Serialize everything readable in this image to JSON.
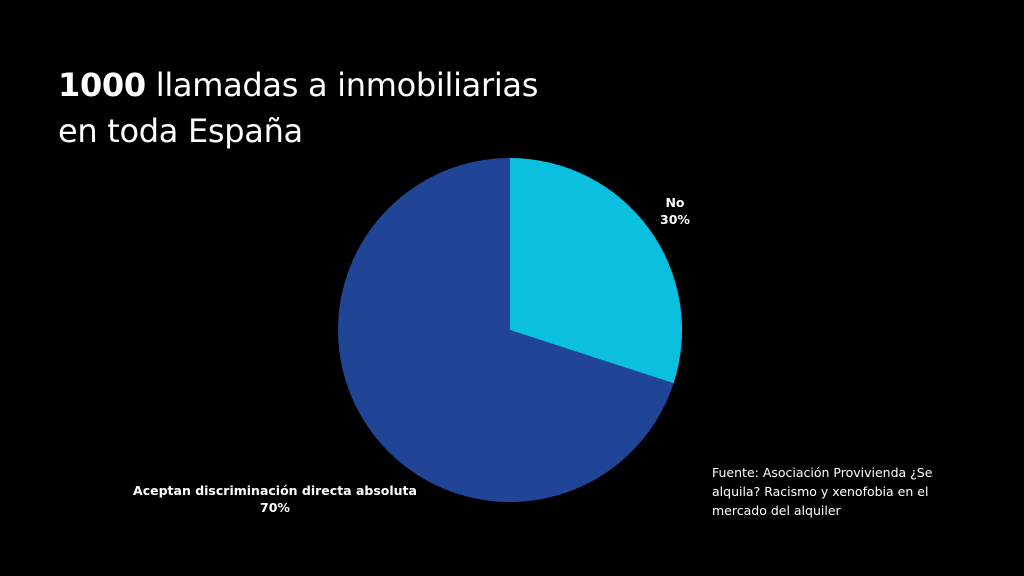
{
  "title": {
    "bold": "1000",
    "rest_line1": " llamadas a inmobiliarias",
    "line2": "en toda España"
  },
  "labels": {
    "no_name": "No",
    "no_pct": "30%",
    "yes_name": "Aceptan discriminación directa absoluta",
    "yes_pct": "70%"
  },
  "source": "Fuente: Asociación Provivienda ¿Se alquila? Racismo y xenofobia en el mercado del alquiler",
  "colors": {
    "background": "#000000",
    "no": "#0BBFDF",
    "yes": "#214596",
    "text": "#ffffff"
  },
  "chart_data": {
    "type": "pie",
    "title": "1000 llamadas a inmobiliarias en toda España",
    "categories": [
      "No",
      "Aceptan discriminación directa absoluta"
    ],
    "values": [
      30,
      70
    ],
    "units": "%",
    "colors": [
      "#0BBFDF",
      "#214596"
    ],
    "start_angle": "12 o'clock, clockwise",
    "legend": "none (data labels outside slices)",
    "annotation": "Fuente: Asociación Provivienda ¿Se alquila? Racismo y xenofobia en el mercado del alquiler"
  }
}
